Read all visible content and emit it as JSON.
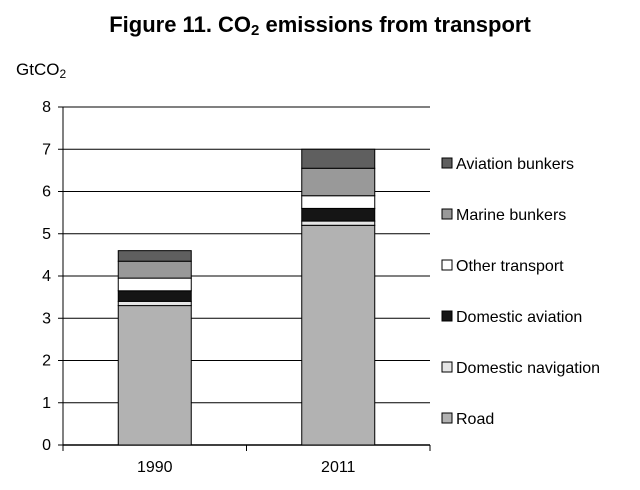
{
  "title": {
    "before": "Figure 11. CO",
    "sub": "2",
    "after": " emissions from transport"
  },
  "unit_label": {
    "main": "GtCO",
    "sub": "2"
  },
  "chart_data": {
    "type": "bar",
    "stacked": true,
    "categories": [
      "1990",
      "2011"
    ],
    "ylim": [
      0,
      8
    ],
    "yticks": [
      "0",
      "1",
      "2",
      "3",
      "4",
      "5",
      "6",
      "7",
      "8"
    ],
    "grid": true,
    "legend_position": "right",
    "series": [
      {
        "name": "Road",
        "values": [
          3.3,
          5.2
        ],
        "color": "#b2b2b2"
      },
      {
        "name": "Domestic navigation",
        "values": [
          0.1,
          0.1
        ],
        "color": "#e6e6e6"
      },
      {
        "name": "Domestic aviation",
        "values": [
          0.25,
          0.3
        ],
        "color": "#151515"
      },
      {
        "name": "Other transport",
        "values": [
          0.3,
          0.3
        ],
        "color": "#ffffff"
      },
      {
        "name": "Marine bunkers",
        "values": [
          0.4,
          0.65
        ],
        "color": "#999999"
      },
      {
        "name": "Aviation bunkers",
        "values": [
          0.25,
          0.45
        ],
        "color": "#5f5f5f"
      }
    ]
  }
}
